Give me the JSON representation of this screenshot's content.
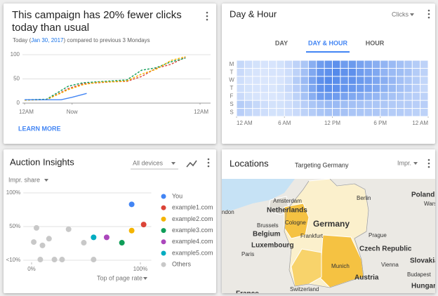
{
  "alert_card": {
    "title": "This campaign has 20% fewer clicks today than usual",
    "subtitle": {
      "before": "Today (",
      "date": "Jan 30, 2017",
      "after": ") compared to previous 3 Mondays"
    },
    "action": "LEARN MORE",
    "chart_data": {
      "type": "line",
      "xlim": [
        0,
        24
      ],
      "xticks": [
        {
          "value": 0,
          "label": "12AM"
        },
        {
          "value": 6.5,
          "label": "Now"
        },
        {
          "value": 24,
          "label": "12AM"
        }
      ],
      "ylim": [
        0,
        100
      ],
      "yticks": [
        0,
        50,
        100
      ],
      "grid": true,
      "series": [
        {
          "color": "#db4437",
          "dashed": true,
          "x": [
            0,
            3,
            6,
            8,
            10,
            12,
            14,
            16,
            18,
            20,
            22
          ],
          "values": [
            7,
            7,
            30,
            40,
            42,
            44,
            45,
            55,
            72,
            80,
            95
          ]
        },
        {
          "color": "#0f9d58",
          "dashed": true,
          "x": [
            0,
            3,
            6,
            8,
            10,
            12,
            14,
            16,
            18,
            20,
            22
          ],
          "values": [
            7,
            8,
            35,
            42,
            44,
            46,
            48,
            68,
            73,
            85,
            93
          ]
        },
        {
          "color": "#f4b400",
          "dashed": true,
          "x": [
            0,
            3,
            6,
            8,
            10,
            12,
            14,
            16,
            18,
            20,
            22
          ],
          "values": [
            6,
            7,
            28,
            38,
            43,
            44,
            46,
            60,
            70,
            88,
            96
          ]
        },
        {
          "color": "#4285f4",
          "dashed": false,
          "x": [
            0,
            3,
            5,
            6.5,
            8.5
          ],
          "values": [
            7,
            7,
            7,
            12,
            20
          ]
        }
      ]
    }
  },
  "day_hour_card": {
    "title": "Day & Hour",
    "metric": "Clicks",
    "tabs": [
      "DAY",
      "DAY & HOUR",
      "HOUR"
    ],
    "selected_tab": 1,
    "chart_data": {
      "type": "heatmap",
      "rows": [
        "M",
        "T",
        "W",
        "T",
        "F",
        "S",
        "S"
      ],
      "xlim": [
        0,
        24
      ],
      "xticks": [
        {
          "value": 0,
          "label": "12 AM"
        },
        {
          "value": 6,
          "label": "6 AM"
        },
        {
          "value": 12,
          "label": "12 PM"
        },
        {
          "value": 18,
          "label": "6 PM"
        },
        {
          "value": 24,
          "label": "12 AM"
        }
      ],
      "vlim": [
        0,
        100
      ],
      "color_scale": [
        "#e8f0fe",
        "#3b78e7"
      ],
      "values": [
        [
          20,
          15,
          12,
          10,
          10,
          12,
          18,
          25,
          35,
          55,
          70,
          75,
          80,
          70,
          72,
          65,
          60,
          55,
          50,
          45,
          40,
          35,
          30,
          25
        ],
        [
          18,
          12,
          10,
          8,
          10,
          10,
          15,
          25,
          40,
          60,
          75,
          80,
          85,
          78,
          80,
          70,
          65,
          60,
          50,
          45,
          42,
          38,
          30,
          25
        ],
        [
          15,
          10,
          10,
          8,
          8,
          10,
          15,
          30,
          45,
          65,
          80,
          85,
          82,
          75,
          78,
          72,
          68,
          62,
          55,
          48,
          40,
          35,
          30,
          22
        ],
        [
          15,
          12,
          10,
          10,
          8,
          12,
          18,
          28,
          42,
          62,
          78,
          82,
          80,
          76,
          74,
          70,
          66,
          60,
          52,
          46,
          40,
          36,
          28,
          20
        ],
        [
          18,
          12,
          10,
          8,
          8,
          10,
          15,
          25,
          38,
          55,
          70,
          72,
          70,
          65,
          60,
          58,
          52,
          48,
          42,
          38,
          35,
          30,
          28,
          25
        ],
        [
          30,
          25,
          20,
          15,
          12,
          12,
          15,
          20,
          28,
          35,
          40,
          45,
          45,
          42,
          40,
          38,
          36,
          35,
          34,
          32,
          30,
          30,
          28,
          28
        ],
        [
          28,
          22,
          18,
          15,
          12,
          12,
          14,
          18,
          25,
          30,
          35,
          38,
          40,
          38,
          36,
          35,
          34,
          34,
          32,
          30,
          30,
          28,
          26,
          25
        ]
      ]
    }
  },
  "auction_card": {
    "title": "Auction Insights",
    "device_filter": "All devices",
    "y_metric": "Impr. share",
    "x_metric": "Top of page rate",
    "chart_data": {
      "type": "scatter",
      "xlim": [
        -5,
        110
      ],
      "xticks": [
        {
          "value": 0,
          "label": "0%"
        },
        {
          "value": 100,
          "label": "100%"
        }
      ],
      "ylim": [
        0,
        100
      ],
      "yticks": [
        {
          "value": 100,
          "label": "100%"
        },
        {
          "value": 50,
          "label": "50%"
        },
        {
          "value": 0,
          "label": "<10%"
        }
      ],
      "grid": true,
      "series": [
        {
          "name": "You",
          "color": "#4285f4",
          "x": [
            92
          ],
          "values": [
            83
          ]
        },
        {
          "name": "example1.com",
          "color": "#db4437",
          "x": [
            103
          ],
          "values": [
            53
          ]
        },
        {
          "name": "example2.com",
          "color": "#f4b400",
          "x": [
            92
          ],
          "values": [
            44
          ]
        },
        {
          "name": "example3.com",
          "color": "#0f9d58",
          "x": [
            83
          ],
          "values": [
            26
          ]
        },
        {
          "name": "example4.com",
          "color": "#ab47bc",
          "x": [
            69
          ],
          "values": [
            34
          ]
        },
        {
          "name": "example5.com",
          "color": "#00acc1",
          "x": [
            57
          ],
          "values": [
            34
          ]
        },
        {
          "name": "Others",
          "color": "#c8c8c8",
          "x": [
            4.5,
            16,
            34,
            2,
            10,
            48,
            8,
            21,
            28,
            57
          ],
          "values": [
            48,
            32,
            46,
            27,
            22,
            26,
            1,
            1,
            1,
            1
          ]
        }
      ]
    }
  },
  "locations_card": {
    "title": "Locations",
    "subtitle": "Targeting Germany",
    "metric": "Impr.",
    "map_labels": [
      "Poland",
      "Warsaw",
      "Berlin",
      "Amsterdam",
      "Netherlands",
      "London",
      "Cologne",
      "Germany",
      "Brussels",
      "Belgium",
      "Frankfurt",
      "Luxembourg",
      "Prague",
      "Czech Republic",
      "Paris",
      "Munich",
      "Vienna",
      "Slovakia",
      "Budapest",
      "Hungary",
      "Austria",
      "Switzerland",
      "France"
    ]
  }
}
